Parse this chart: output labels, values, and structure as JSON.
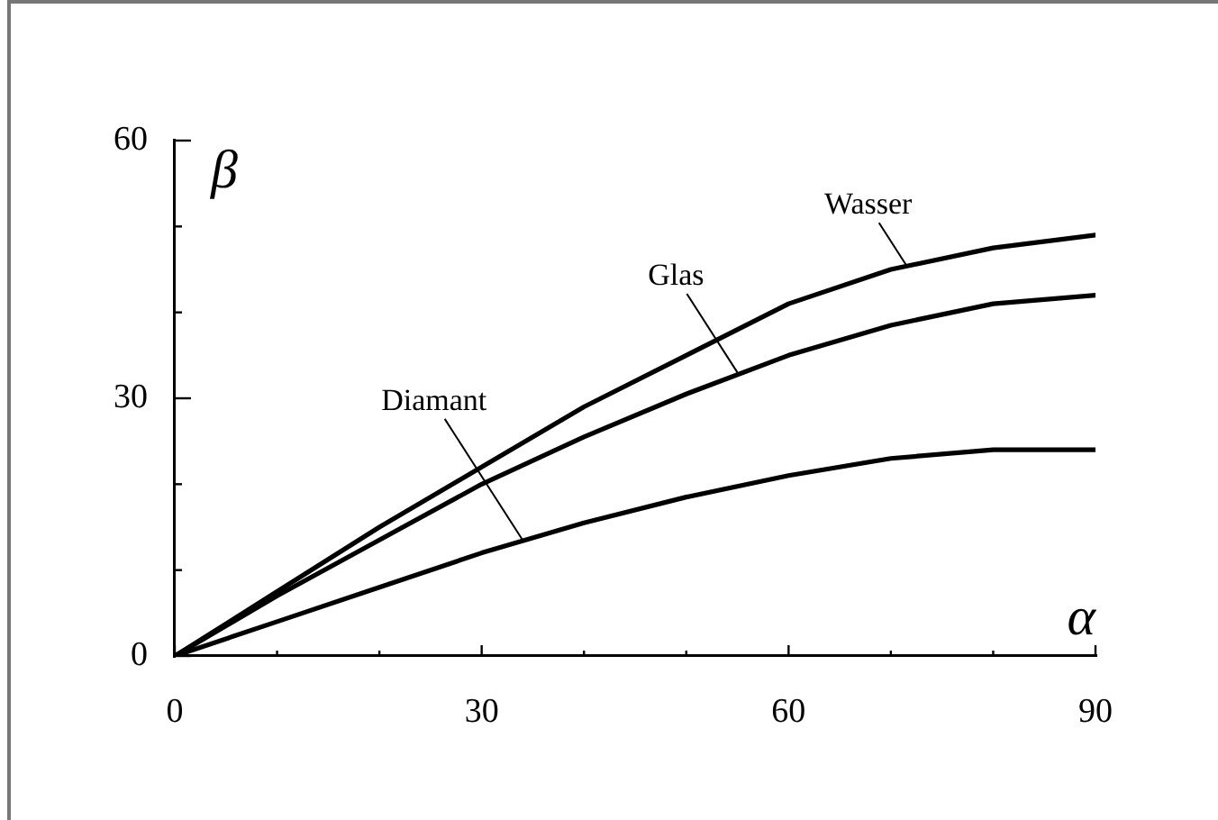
{
  "chart_data": {
    "type": "line",
    "xlabel": "α",
    "ylabel": "β",
    "x": [
      0,
      10,
      20,
      30,
      40,
      50,
      60,
      70,
      80,
      90
    ],
    "xlim": [
      0,
      90
    ],
    "ylim": [
      0,
      60
    ],
    "xticks": [
      0,
      {
        "value": 10,
        "label": null
      },
      {
        "value": 20,
        "label": null
      },
      30,
      {
        "value": 40,
        "label": null
      },
      {
        "value": 50,
        "label": null
      },
      60,
      {
        "value": 70,
        "label": null
      },
      {
        "value": 80,
        "label": null
      },
      90
    ],
    "yticks": [
      0,
      {
        "value": 10,
        "label": null
      },
      {
        "value": 20,
        "label": null
      },
      30,
      {
        "value": 40,
        "label": null
      },
      {
        "value": 50,
        "label": null
      },
      60
    ],
    "series": [
      {
        "color": "#000000",
        "values": [
          0,
          7.5,
          15,
          22,
          29,
          35,
          41,
          45,
          47.5,
          49
        ]
      },
      {
        "color": "#000000",
        "values": [
          0,
          7,
          13.5,
          20,
          25.5,
          30.5,
          35,
          38.5,
          41,
          42
        ]
      },
      {
        "color": "#000000",
        "values": [
          0,
          4,
          8,
          12,
          15.5,
          18.5,
          21,
          23,
          24,
          24
        ]
      }
    ],
    "annotations": [
      {
        "text": "Wasser",
        "x": 71.5,
        "y": 45.5
      },
      {
        "text": "Glas",
        "x": 55,
        "y": 33
      },
      {
        "text": "Diamant",
        "x": 34,
        "y": 13.5
      }
    ]
  }
}
